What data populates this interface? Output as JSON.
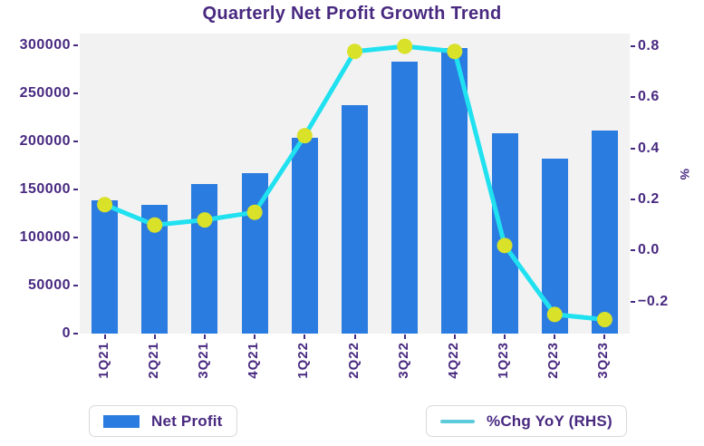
{
  "title": "Quarterly Net Profit Growth Trend",
  "colors": {
    "text": "#482980",
    "bar": "#2B7CE0",
    "line": "#20E1F0",
    "marker": "#D9E128",
    "legend_line": "#5ECBDA",
    "plot_bg": "#F2F2F3",
    "page_bg": "#FFFFFF",
    "legend_border": "#D9D9DE"
  },
  "chart_data": {
    "type": "bar+line",
    "title": "Quarterly Net Profit Growth Trend",
    "categories": [
      "1Q21",
      "2Q21",
      "3Q21",
      "4Q21",
      "1Q22",
      "2Q22",
      "3Q22",
      "4Q22",
      "1Q23",
      "2Q23",
      "3Q23"
    ],
    "series": [
      {
        "name": "Net Profit",
        "type": "bar",
        "axis": "left",
        "color": "#2B7CE0",
        "values": [
          139000,
          134000,
          156000,
          167000,
          204000,
          238000,
          283000,
          297000,
          208000,
          182000,
          211000
        ]
      },
      {
        "name": "%Chg YoY (RHS)",
        "type": "line",
        "axis": "right",
        "color": "#20E1F0",
        "marker_color": "#D9E128",
        "values": [
          0.18,
          0.1,
          0.12,
          0.15,
          0.45,
          0.78,
          0.8,
          0.78,
          0.02,
          -0.25,
          -0.27
        ]
      }
    ],
    "left_axis": {
      "ticks": [
        0,
        50000,
        100000,
        150000,
        200000,
        250000,
        300000
      ],
      "lim": [
        0,
        312000
      ]
    },
    "right_axis": {
      "ticks": [
        0.8,
        0.6,
        0.4,
        0.2,
        0.0,
        -0.2
      ],
      "lim": [
        -0.325,
        0.85
      ],
      "label": "%"
    },
    "grid": false,
    "legend_position": "bottom"
  },
  "legend": {
    "items": [
      {
        "label": "Net Profit",
        "swatch": "bar"
      },
      {
        "label": "%Chg YoY (RHS)",
        "swatch": "line"
      }
    ]
  }
}
